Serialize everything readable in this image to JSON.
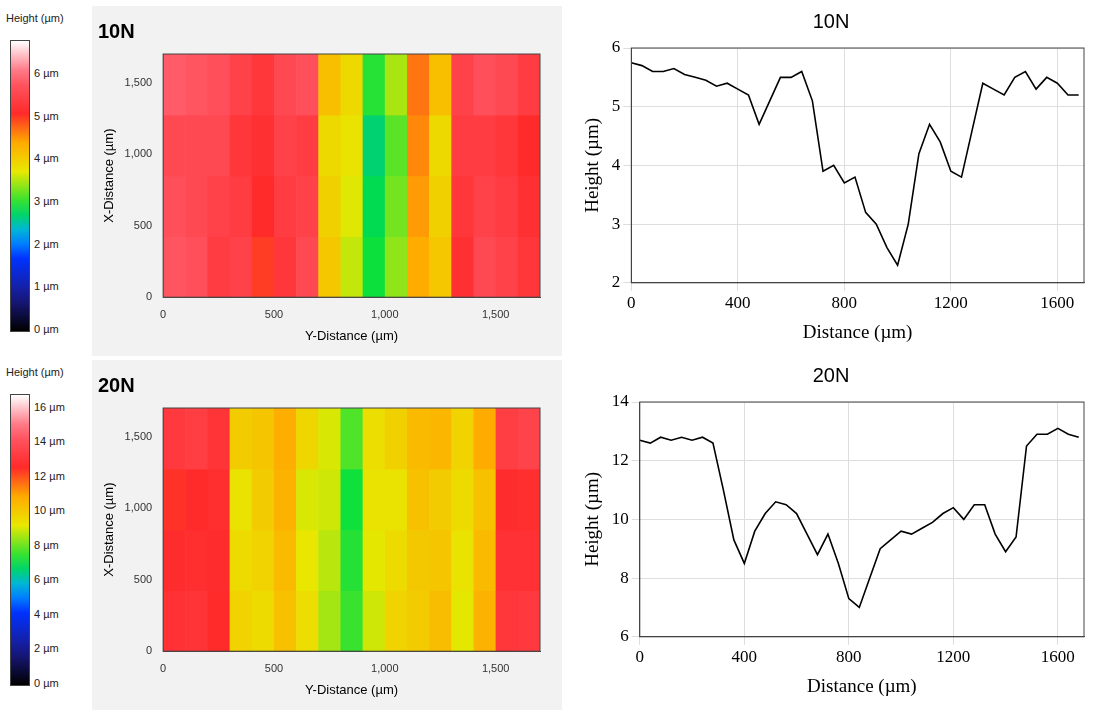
{
  "chart_data": [
    {
      "type": "heatmap",
      "title": "10N",
      "x_label": "Y-Distance (µm)",
      "y_label": "X-Distance (µm)",
      "z_label": "Height (µm)",
      "xlim": [
        0,
        1700
      ],
      "xticks": [
        0,
        500,
        {
          "value": 1000,
          "label": "1,000"
        },
        {
          "value": 1500,
          "label": "1,500"
        }
      ],
      "ylim": [
        0,
        1700
      ],
      "yticks": [
        0,
        500,
        {
          "value": 1000,
          "label": "1,000"
        },
        {
          "value": 1500,
          "label": "1,500"
        }
      ],
      "x_edges": [
        0,
        100,
        200,
        300,
        400,
        500,
        600,
        700,
        800,
        900,
        1000,
        1100,
        1200,
        1300,
        1400,
        1500,
        1600,
        1700
      ],
      "y_edges": [
        0,
        425,
        850,
        1275,
        1700
      ],
      "cells": [
        [
          5.8,
          5.7,
          5.4,
          5.5,
          5.0,
          5.3,
          5.6,
          4.1,
          3.6,
          2.9,
          3.4,
          4.4,
          4.1,
          5.2,
          5.6,
          5.5,
          5.3
        ],
        [
          5.7,
          5.6,
          5.5,
          5.4,
          5.1,
          5.4,
          5.5,
          4.0,
          3.7,
          2.8,
          3.3,
          4.5,
          4.0,
          5.3,
          5.5,
          5.4,
          5.2
        ],
        [
          5.6,
          5.6,
          5.6,
          5.3,
          5.2,
          5.5,
          5.4,
          3.9,
          3.8,
          2.7,
          3.2,
          4.6,
          3.9,
          5.4,
          5.4,
          5.3,
          5.1
        ],
        [
          5.9,
          5.8,
          5.7,
          5.5,
          5.3,
          5.6,
          5.7,
          4.2,
          3.9,
          3.0,
          3.5,
          4.7,
          4.2,
          5.5,
          5.7,
          5.6,
          5.4
        ]
      ],
      "colorbar_range": [
        0,
        6.8
      ],
      "colorbar_ticks": [
        {
          "value": 0,
          "label": "0 µm"
        },
        {
          "value": 1,
          "label": "1 µm"
        },
        {
          "value": 2,
          "label": "2 µm"
        },
        {
          "value": 3,
          "label": "3 µm"
        },
        {
          "value": 4,
          "label": "4 µm"
        },
        {
          "value": 5,
          "label": "5 µm"
        },
        {
          "value": 6,
          "label": "6 µm"
        }
      ],
      "grid": false
    },
    {
      "type": "line",
      "title": "10N",
      "x_label": "Distance (µm)",
      "y_label": "Height (µm)",
      "xlim": [
        0,
        1700
      ],
      "xticks": [
        0,
        400,
        800,
        1200,
        1600
      ],
      "ylim": [
        2,
        6
      ],
      "yticks": [
        2,
        3,
        4,
        5,
        6
      ],
      "grid": true,
      "x": [
        0,
        40,
        80,
        120,
        160,
        200,
        240,
        280,
        320,
        360,
        400,
        440,
        480,
        520,
        560,
        600,
        640,
        680,
        720,
        760,
        800,
        840,
        880,
        920,
        960,
        1000,
        1040,
        1080,
        1120,
        1160,
        1200,
        1240,
        1280,
        1320,
        1360,
        1400,
        1440,
        1480,
        1520,
        1560,
        1600,
        1640,
        1680
      ],
      "values": [
        5.75,
        5.7,
        5.6,
        5.6,
        5.65,
        5.55,
        5.5,
        5.45,
        5.35,
        5.4,
        5.3,
        5.2,
        4.7,
        5.1,
        5.5,
        5.5,
        5.6,
        5.1,
        3.9,
        4.0,
        3.7,
        3.8,
        3.2,
        3.0,
        2.6,
        2.3,
        3.0,
        4.2,
        4.7,
        4.4,
        3.9,
        3.8,
        4.6,
        5.4,
        5.3,
        5.2,
        5.5,
        5.6,
        5.3,
        5.5,
        5.4,
        5.2,
        5.2
      ],
      "color": "#000000"
    },
    {
      "type": "heatmap",
      "title": "20N",
      "x_label": "Y-Distance (µm)",
      "y_label": "X-Distance (µm)",
      "z_label": "Height (µm)",
      "xlim": [
        0,
        1700
      ],
      "xticks": [
        0,
        500,
        {
          "value": 1000,
          "label": "1,000"
        },
        {
          "value": 1500,
          "label": "1,500"
        }
      ],
      "ylim": [
        0,
        1700
      ],
      "yticks": [
        0,
        500,
        {
          "value": 1000,
          "label": "1,000"
        },
        {
          "value": 1500,
          "label": "1,500"
        }
      ],
      "x_edges": [
        0,
        100,
        200,
        300,
        400,
        500,
        600,
        700,
        800,
        900,
        1000,
        1100,
        1200,
        1300,
        1400,
        1500,
        1600,
        1700
      ],
      "y_edges": [
        0,
        425,
        850,
        1275,
        1700
      ],
      "cells": [
        [
          12.9,
          13.0,
          12.6,
          9.8,
          9.6,
          10.3,
          9.5,
          8.6,
          7.6,
          9.0,
          9.8,
          10.0,
          10.4,
          9.2,
          10.7,
          13.1,
          13.2
        ],
        [
          12.7,
          12.8,
          12.7,
          9.6,
          9.8,
          10.5,
          9.3,
          8.8,
          7.4,
          9.2,
          9.6,
          10.1,
          10.2,
          9.4,
          10.5,
          12.9,
          12.9
        ],
        [
          12.5,
          12.6,
          12.8,
          9.4,
          10.0,
          10.7,
          9.1,
          9.0,
          7.2,
          9.4,
          9.4,
          10.3,
          10.0,
          9.6,
          10.3,
          12.7,
          12.8
        ],
        [
          13.2,
          13.4,
          13.0,
          10.0,
          10.2,
          10.8,
          9.7,
          9.1,
          7.8,
          9.5,
          9.9,
          10.5,
          10.6,
          9.8,
          10.9,
          13.4,
          13.6
        ]
      ],
      "colorbar_range": [
        0,
        16.8
      ],
      "colorbar_ticks": [
        {
          "value": 0,
          "label": "0 µm"
        },
        {
          "value": 2,
          "label": "2 µm"
        },
        {
          "value": 4,
          "label": "4 µm"
        },
        {
          "value": 6,
          "label": "6 µm"
        },
        {
          "value": 8,
          "label": "8 µm"
        },
        {
          "value": 10,
          "label": "10 µm"
        },
        {
          "value": 12,
          "label": "12 µm"
        },
        {
          "value": 14,
          "label": "14 µm"
        },
        {
          "value": 16,
          "label": "16 µm"
        }
      ],
      "grid": false
    },
    {
      "type": "line",
      "title": "20N",
      "x_label": "Distance (µm)",
      "y_label": "Height (µm)",
      "xlim": [
        0,
        1700
      ],
      "xticks": [
        0,
        400,
        800,
        1200,
        1600
      ],
      "ylim": [
        6,
        14
      ],
      "yticks": [
        6,
        8,
        10,
        12,
        14
      ],
      "grid": true,
      "x": [
        0,
        40,
        80,
        120,
        160,
        200,
        240,
        280,
        320,
        360,
        400,
        440,
        480,
        520,
        560,
        600,
        640,
        680,
        720,
        760,
        800,
        840,
        880,
        920,
        960,
        1000,
        1040,
        1080,
        1120,
        1160,
        1200,
        1240,
        1280,
        1320,
        1360,
        1400,
        1440,
        1480,
        1520,
        1560,
        1600,
        1640,
        1680
      ],
      "values": [
        12.7,
        12.6,
        12.8,
        12.7,
        12.8,
        12.7,
        12.8,
        12.6,
        11.0,
        9.3,
        8.5,
        9.6,
        10.2,
        10.6,
        10.5,
        10.2,
        9.5,
        8.8,
        9.5,
        8.5,
        7.3,
        7.0,
        8.0,
        9.0,
        9.3,
        9.6,
        9.5,
        9.7,
        9.9,
        10.2,
        10.4,
        10.0,
        10.5,
        10.5,
        9.5,
        8.9,
        9.4,
        12.5,
        12.9,
        12.9,
        13.1,
        12.9,
        12.8
      ],
      "color": "#000000"
    }
  ]
}
